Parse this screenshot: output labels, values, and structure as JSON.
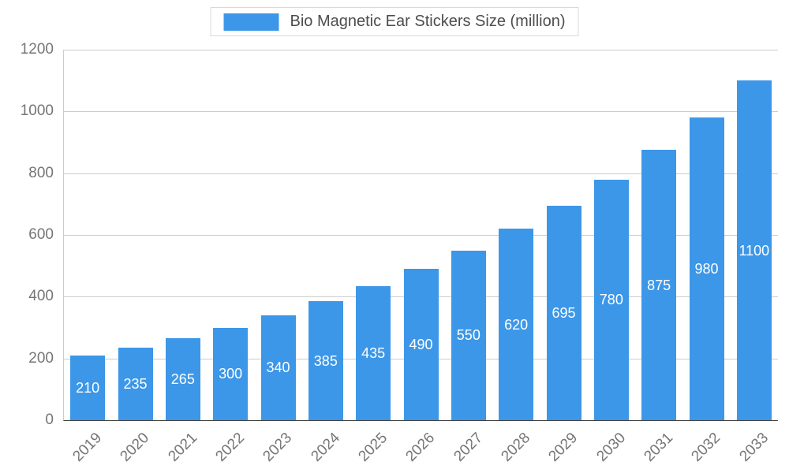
{
  "chart_data": {
    "type": "bar",
    "title": "Bio Magnetic Ear Stickers Size (million)",
    "categories": [
      "2019",
      "2020",
      "2021",
      "2022",
      "2023",
      "2024",
      "2025",
      "2026",
      "2027",
      "2028",
      "2029",
      "2030",
      "2031",
      "2032",
      "2033"
    ],
    "values": [
      210,
      235,
      265,
      300,
      340,
      385,
      435,
      490,
      550,
      620,
      695,
      780,
      875,
      980,
      1100
    ],
    "xlabel": "",
    "ylabel": "",
    "ylim": [
      0,
      1200
    ],
    "ytick_step": 200,
    "grid": true,
    "legend_position": "top",
    "bar_color": "#3C97E8",
    "value_label_color": "#ffffff",
    "axis_text_color": "#757575",
    "grid_color": "#cccccc",
    "axis_line_color": "#424242"
  }
}
